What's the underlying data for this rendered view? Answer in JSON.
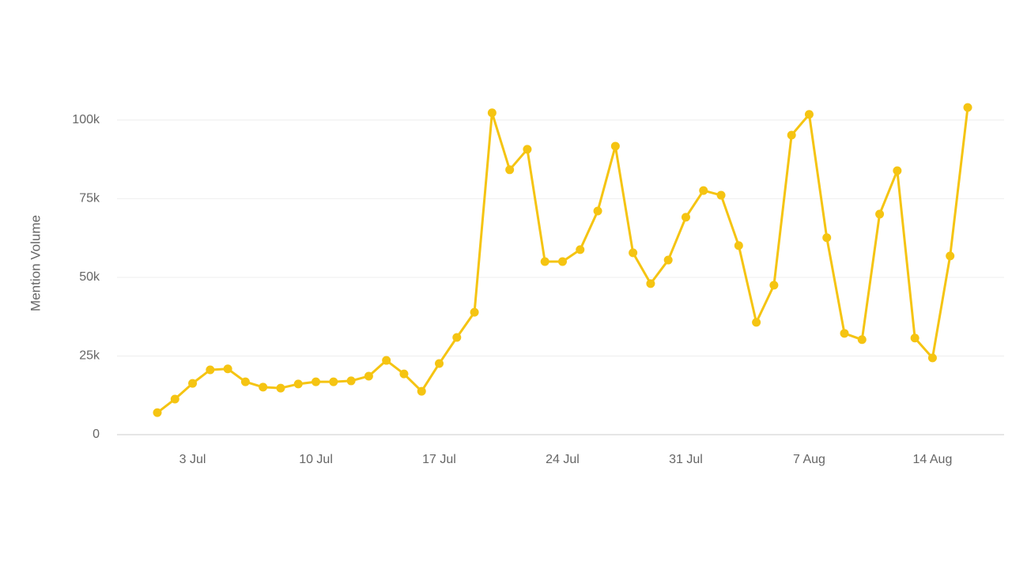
{
  "chart_data": {
    "type": "line",
    "y_label": "Mention Volume",
    "categories": [
      null,
      null,
      "3 Jul",
      null,
      null,
      null,
      null,
      null,
      null,
      "10 Jul",
      null,
      null,
      null,
      null,
      null,
      null,
      "17 Jul",
      null,
      null,
      null,
      null,
      null,
      null,
      "24 Jul",
      null,
      null,
      null,
      null,
      null,
      null,
      "31 Jul",
      null,
      null,
      null,
      null,
      null,
      null,
      "7 Aug",
      null,
      null,
      null,
      null,
      null,
      null,
      "14 Aug",
      null,
      null
    ],
    "series": [
      {
        "name": "Mention Volume",
        "color": "#f5c412",
        "values": [
          7000,
          11300,
          16300,
          20600,
          20900,
          16800,
          15100,
          14800,
          16100,
          16800,
          16800,
          17100,
          18600,
          23600,
          19300,
          13800,
          22600,
          30900,
          38900,
          102300,
          84200,
          90700,
          55000,
          55000,
          58800,
          71100,
          91700,
          57800,
          48000,
          55500,
          69100,
          77600,
          76100,
          60100,
          35700,
          47500,
          95200,
          101800,
          62600,
          32200,
          30200,
          70100,
          83900,
          30700,
          24400,
          56800,
          104000
        ]
      }
    ],
    "ylim": [
      0,
      105000
    ],
    "yticks": [
      0,
      {
        "value": 25000,
        "label": "25k"
      },
      {
        "value": 50000,
        "label": "50k"
      },
      {
        "value": 75000,
        "label": "75k"
      },
      {
        "value": 100000,
        "label": "100k"
      }
    ],
    "grid": true
  }
}
